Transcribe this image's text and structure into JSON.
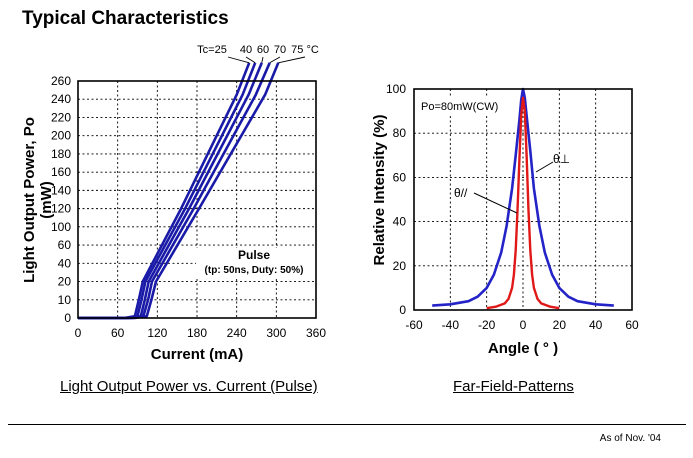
{
  "page": {
    "title": "Typical Characteristics",
    "footer_note": "As of Nov. '04"
  },
  "chart_data": [
    {
      "type": "line",
      "caption": "Light Output Power vs. Current (Pulse)",
      "xlabel": "Current (mA)",
      "ylabel": [
        "Light Output Power, Po",
        "(mW)"
      ],
      "xlim": [
        0,
        360
      ],
      "x_ticks": [
        0,
        60,
        120,
        180,
        240,
        300,
        360
      ],
      "y_tick_labels": [
        "0",
        "10",
        "20",
        "40",
        "60",
        "100",
        "120",
        "140",
        "160",
        "180",
        "200",
        "220",
        "240",
        "260"
      ],
      "y_scale": "broken (0-20 step 10, then 20-260 step 20)",
      "grid": true,
      "series_color": "#1a1aa8",
      "temperature_labels": [
        "Tc=25",
        "40",
        "60",
        "70",
        "75 °C"
      ],
      "annotation_title": "Pulse",
      "annotation_detail": "(tp: 50ns, Duty: 50%)",
      "series": [
        {
          "points": [
            [
              0,
              0
            ],
            [
              70,
              0
            ],
            [
              86,
              1
            ],
            [
              92,
              10
            ],
            [
              98,
              20
            ],
            [
              156,
              100
            ],
            [
              240,
              225
            ],
            [
              259,
              260
            ]
          ]
        },
        {
          "points": [
            [
              0,
              0
            ],
            [
              74,
              0
            ],
            [
              90,
              1
            ],
            [
              96,
              10
            ],
            [
              102,
              20
            ],
            [
              162,
              100
            ],
            [
              249,
              225
            ],
            [
              268,
              260
            ]
          ]
        },
        {
          "points": [
            [
              0,
              0
            ],
            [
              78,
              0
            ],
            [
              95,
              1
            ],
            [
              101,
              10
            ],
            [
              107,
              20
            ],
            [
              168,
              100
            ],
            [
              258,
              225
            ],
            [
              278,
              260
            ]
          ]
        },
        {
          "points": [
            [
              0,
              0
            ],
            [
              82,
              0
            ],
            [
              99,
              1
            ],
            [
              106,
              10
            ],
            [
              112,
              20
            ],
            [
              175,
              100
            ],
            [
              269,
              225
            ],
            [
              290,
              260
            ]
          ]
        },
        {
          "points": [
            [
              0,
              0
            ],
            [
              86,
              0
            ],
            [
              104,
              1
            ],
            [
              111,
              10
            ],
            [
              118,
              20
            ],
            [
              183,
              100
            ],
            [
              283,
              225
            ],
            [
              303,
              260
            ]
          ]
        }
      ]
    },
    {
      "type": "line",
      "caption": "Far-Field-Patterns",
      "xlabel": "Angle ( ° )",
      "ylabel": "Relative Intensity (%)",
      "xlim": [
        -60,
        60
      ],
      "ylim": [
        0,
        100
      ],
      "x_ticks": [
        -60,
        -40,
        -20,
        0,
        20,
        40,
        60
      ],
      "y_ticks": [
        0,
        20,
        40,
        60,
        80,
        100
      ],
      "grid": true,
      "condition": "Po=80mW(CW)",
      "series": [
        {
          "name": "θ⊥",
          "color": "#2323c8",
          "width": 2.6,
          "points": [
            [
              -50,
              2
            ],
            [
              -40,
              2.6
            ],
            [
              -30,
              4
            ],
            [
              -25,
              6
            ],
            [
              -20,
              10
            ],
            [
              -16,
              16
            ],
            [
              -12,
              26
            ],
            [
              -9,
              38
            ],
            [
              -6,
              55
            ],
            [
              -4,
              70
            ],
            [
              -2,
              86
            ],
            [
              -1,
              95
            ],
            [
              0,
              100
            ],
            [
              1,
              96
            ],
            [
              2,
              88
            ],
            [
              4,
              72
            ],
            [
              6,
              55
            ],
            [
              9,
              38
            ],
            [
              12,
              26
            ],
            [
              16,
              16
            ],
            [
              20,
              10
            ],
            [
              25,
              6
            ],
            [
              30,
              4
            ],
            [
              40,
              2.6
            ],
            [
              50,
              2
            ]
          ]
        },
        {
          "name": "θ//",
          "color": "#e01818",
          "width": 2.4,
          "points": [
            [
              -20,
              0.8
            ],
            [
              -15,
              1.5
            ],
            [
              -10,
              3
            ],
            [
              -8,
              5
            ],
            [
              -6,
              10
            ],
            [
              -5,
              16
            ],
            [
              -4,
              27
            ],
            [
              -3,
              45
            ],
            [
              -2,
              68
            ],
            [
              -1,
              88
            ],
            [
              0,
              96
            ],
            [
              1,
              90
            ],
            [
              2,
              70
            ],
            [
              3,
              45
            ],
            [
              4,
              27
            ],
            [
              5,
              16
            ],
            [
              6,
              10
            ],
            [
              8,
              5
            ],
            [
              10,
              3
            ],
            [
              15,
              1.5
            ],
            [
              20,
              0.8
            ]
          ]
        }
      ]
    }
  ]
}
